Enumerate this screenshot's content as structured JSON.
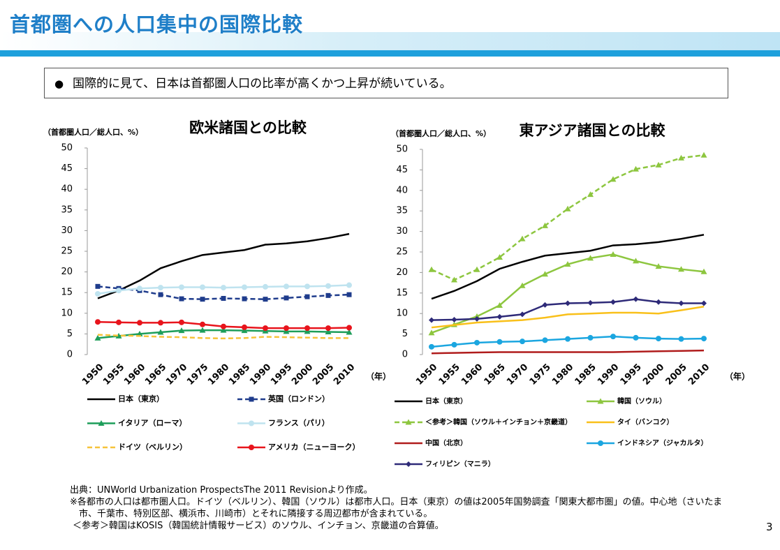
{
  "header": {
    "title": "首都圏への人口集中の国際比較"
  },
  "bullet": "国際的に見て、日本は首都圏人口の比率が高くかつ上昇が続いている。",
  "chart_data": [
    {
      "type": "line",
      "title": "欧米諸国との比較",
      "y_label": "（首都圏人口／総人口、%）",
      "x_label": "（年）",
      "categories": [
        "1950",
        "1955",
        "1960",
        "1965",
        "1970",
        "1975",
        "1980",
        "1985",
        "1990",
        "1995",
        "2000",
        "2005",
        "2010"
      ],
      "ylim": [
        0,
        50
      ],
      "yticks": [
        0,
        5,
        10,
        15,
        20,
        25,
        30,
        35,
        40,
        45,
        50
      ],
      "series": [
        {
          "name": "日本（東京）",
          "color": "#000000",
          "dash": false,
          "marker": "none",
          "values": [
            13.6,
            15.5,
            17.9,
            20.9,
            22.6,
            24.1,
            24.7,
            25.3,
            26.6,
            26.9,
            27.4,
            28.2,
            29.2
          ]
        },
        {
          "name": "英国（ロンドン）",
          "color": "#1f3c8c",
          "dash": true,
          "marker": "square",
          "values": [
            16.5,
            16.0,
            15.5,
            14.5,
            13.5,
            13.4,
            13.6,
            13.5,
            13.4,
            13.7,
            14.0,
            14.3,
            14.5
          ]
        },
        {
          "name": "イタリア（ローマ）",
          "color": "#1e9e5a",
          "dash": false,
          "marker": "triangle",
          "values": [
            4.0,
            4.5,
            5.0,
            5.4,
            5.8,
            5.9,
            5.9,
            5.8,
            5.7,
            5.6,
            5.6,
            5.5,
            5.4
          ]
        },
        {
          "name": "フランス（パリ）",
          "color": "#bfe3ef",
          "dash": false,
          "marker": "circle",
          "values": [
            14.7,
            15.5,
            16.0,
            16.2,
            16.3,
            16.3,
            16.2,
            16.3,
            16.4,
            16.5,
            16.5,
            16.6,
            16.8
          ]
        },
        {
          "name": "ドイツ（ベルリン）",
          "color": "#f6c33a",
          "dash": true,
          "marker": "none",
          "values": [
            4.8,
            4.6,
            4.5,
            4.3,
            4.2,
            4.0,
            3.9,
            4.0,
            4.3,
            4.2,
            4.1,
            4.0,
            4.0
          ]
        },
        {
          "name": "アメリカ（ニューヨーク）",
          "color": "#e8141c",
          "dash": false,
          "marker": "circle",
          "values": [
            7.9,
            7.8,
            7.7,
            7.7,
            7.8,
            7.3,
            6.8,
            6.6,
            6.4,
            6.4,
            6.4,
            6.4,
            6.5
          ]
        }
      ]
    },
    {
      "type": "line",
      "title": "東アジア諸国との比較",
      "y_label": "（首都圏人口／総人口、%）",
      "x_label": "（年）",
      "categories": [
        "1950",
        "1955",
        "1960",
        "1965",
        "1970",
        "1975",
        "1980",
        "1985",
        "1990",
        "1995",
        "2000",
        "2005",
        "2010"
      ],
      "ylim": [
        0,
        50
      ],
      "yticks": [
        0,
        5,
        10,
        15,
        20,
        25,
        30,
        35,
        40,
        45,
        50
      ],
      "series": [
        {
          "name": "日本（東京）",
          "color": "#000000",
          "dash": false,
          "marker": "none",
          "values": [
            13.6,
            15.5,
            17.9,
            20.9,
            22.6,
            24.1,
            24.7,
            25.3,
            26.6,
            26.9,
            27.4,
            28.2,
            29.2
          ]
        },
        {
          "name": "韓国（ソウル）",
          "color": "#8dc63f",
          "dash": false,
          "marker": "triangle",
          "values": [
            5.3,
            7.3,
            9.3,
            12.0,
            16.8,
            19.6,
            22.0,
            23.5,
            24.4,
            22.8,
            21.5,
            20.8,
            20.2
          ]
        },
        {
          "name": "＜参考＞韓国（ソウル＋インチョン＋京畿道）",
          "color": "#8dc63f",
          "dash": true,
          "marker": "triangle",
          "values": [
            20.7,
            18.2,
            20.7,
            23.7,
            28.2,
            31.4,
            35.5,
            39.0,
            42.7,
            45.2,
            46.2,
            47.9,
            48.6
          ]
        },
        {
          "name": "タイ（バンコク）",
          "color": "#f9c01a",
          "dash": false,
          "marker": "none",
          "values": [
            6.6,
            7.2,
            7.8,
            8.1,
            8.4,
            9.0,
            9.8,
            10.0,
            10.2,
            10.2,
            10.0,
            10.8,
            11.7
          ]
        },
        {
          "name": "中国（北京）",
          "color": "#b01c1c",
          "dash": false,
          "marker": "none",
          "values": [
            0.3,
            0.4,
            0.5,
            0.6,
            0.6,
            0.6,
            0.6,
            0.6,
            0.6,
            0.7,
            0.8,
            0.9,
            1.0
          ]
        },
        {
          "name": "インドネシア（ジャカルタ）",
          "color": "#1ba6e0",
          "dash": false,
          "marker": "circle",
          "values": [
            1.9,
            2.4,
            2.9,
            3.1,
            3.2,
            3.5,
            3.8,
            4.1,
            4.4,
            4.1,
            3.9,
            3.8,
            3.9
          ]
        },
        {
          "name": "フィリピン（マニラ）",
          "color": "#2e2a78",
          "dash": false,
          "marker": "diamond",
          "values": [
            8.4,
            8.5,
            8.7,
            9.2,
            9.8,
            12.1,
            12.5,
            12.6,
            12.8,
            13.5,
            12.8,
            12.5,
            12.5
          ]
        }
      ]
    }
  ],
  "notes": [
    "出典：UNWorld Urbanization ProspectsThe 2011 Revisionより作成。",
    "※各都市の人口は都市圏人口。ドイツ（ベルリン）、韓国（ソウル）は都市人口。日本（東京）の値は2005年国勢調査「関東大都市圏」の値。中心地（さいたま市、千葉市、特別区部、横浜市、川崎市）とそれに隣接する周辺都市が含まれている。",
    "＜参考＞韓国はKOSIS（韓国統計情報サービス）のソウル、インチョン、京畿道の合算値。"
  ],
  "page_number": "3"
}
